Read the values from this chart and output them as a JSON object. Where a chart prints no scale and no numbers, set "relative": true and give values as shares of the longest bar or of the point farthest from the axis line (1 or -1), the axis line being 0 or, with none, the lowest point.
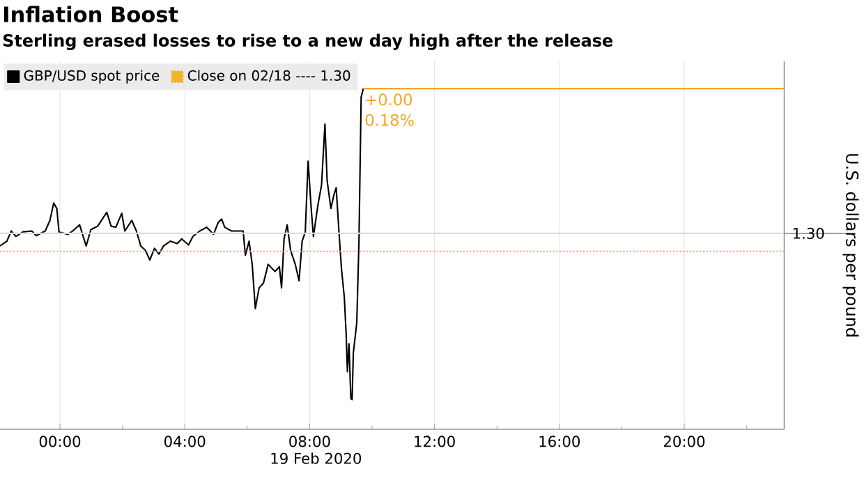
{
  "chart_data": {
    "type": "line",
    "title": "Inflation Boost",
    "subtitle": "Sterling erased losses to rise to a new day high after the release",
    "xlabel": "19 Feb 2020",
    "ylabel": "U.S. dollars per pound",
    "relative": true,
    "xlim": [
      -1.92,
      23.2
    ],
    "xticks": [
      {
        "value": 0,
        "label": "00:00"
      },
      {
        "value": 2,
        "label": null
      },
      {
        "value": 4,
        "label": "04:00"
      },
      {
        "value": 6,
        "label": null
      },
      {
        "value": 8,
        "label": "08:00"
      },
      {
        "value": 10,
        "label": null
      },
      {
        "value": 12,
        "label": "12:00"
      },
      {
        "value": 14,
        "label": null
      },
      {
        "value": 16,
        "label": "16:00"
      },
      {
        "value": 18,
        "label": null
      },
      {
        "value": 20,
        "label": "20:00"
      },
      {
        "value": 22,
        "label": null
      }
    ],
    "grid": "x",
    "legend": "top left",
    "marker": "none",
    "line_style": "solid",
    "series": [
      {
        "name": "GBP/USD spot price",
        "color": "#000000",
        "x": [
          -1.92,
          -1.7,
          -1.56,
          -1.41,
          -1.19,
          -0.9,
          -0.76,
          -0.47,
          -0.32,
          -0.2,
          -0.1,
          -0.03,
          0.26,
          0.41,
          0.63,
          0.84,
          0.99,
          1.21,
          1.5,
          1.64,
          1.79,
          1.98,
          2.08,
          2.3,
          2.45,
          2.59,
          2.74,
          2.88,
          3.03,
          3.17,
          3.32,
          3.54,
          3.76,
          3.9,
          4.12,
          4.26,
          4.48,
          4.7,
          4.92,
          5.07,
          5.18,
          5.28,
          5.5,
          5.87,
          5.94,
          6.06,
          6.16,
          6.26,
          6.38,
          6.52,
          6.67,
          6.89,
          7.03,
          7.1,
          7.18,
          7.28,
          7.39,
          7.54,
          7.66,
          7.76,
          7.86,
          7.95,
          8.05,
          8.12,
          8.27,
          8.38,
          8.49,
          8.56,
          8.68,
          8.78,
          8.85,
          8.92,
          9.02,
          9.11,
          9.17,
          9.21,
          9.26,
          9.32,
          9.36,
          9.4,
          9.51,
          9.58,
          9.65,
          9.72
        ],
        "values": [
          0.538,
          0.552,
          0.582,
          0.566,
          0.579,
          0.582,
          0.568,
          0.582,
          0.613,
          0.664,
          0.648,
          0.579,
          0.572,
          0.582,
          0.6,
          0.538,
          0.586,
          0.596,
          0.637,
          0.596,
          0.593,
          0.634,
          0.582,
          0.613,
          0.582,
          0.538,
          0.525,
          0.497,
          0.531,
          0.514,
          0.538,
          0.552,
          0.545,
          0.559,
          0.541,
          0.566,
          0.582,
          0.593,
          0.572,
          0.607,
          0.617,
          0.593,
          0.582,
          0.582,
          0.511,
          0.552,
          0.484,
          0.354,
          0.415,
          0.429,
          0.484,
          0.463,
          0.477,
          0.415,
          0.559,
          0.6,
          0.525,
          0.484,
          0.436,
          0.552,
          0.579,
          0.787,
          0.648,
          0.566,
          0.661,
          0.716,
          0.896,
          0.73,
          0.648,
          0.689,
          0.709,
          0.607,
          0.47,
          0.388,
          0.279,
          0.169,
          0.251,
          0.09,
          0.087,
          0.224,
          0.313,
          0.552,
          0.975,
          1.0
        ]
      },
      {
        "type": "line",
        "color": "#f5a623",
        "x": [
          9.72,
          23.2
        ],
        "values": [
          1.0,
          1.0
        ]
      }
    ],
    "ref_lines": [
      {
        "axis": "y",
        "value": 0.522,
        "label": "Close on 02/18 ---- 1.30",
        "color": "#f0b429",
        "line_style": "dotted"
      },
      {
        "axis": "y",
        "value": 0.575,
        "color": "#dcdcdc",
        "line_style": "solid"
      }
    ],
    "annotations": [
      {
        "text": "+0.00",
        "x": 9.72,
        "y": 1.0
      },
      {
        "text": "0.18%",
        "x": 9.72,
        "y": 1.0
      },
      "1.30"
    ]
  }
}
